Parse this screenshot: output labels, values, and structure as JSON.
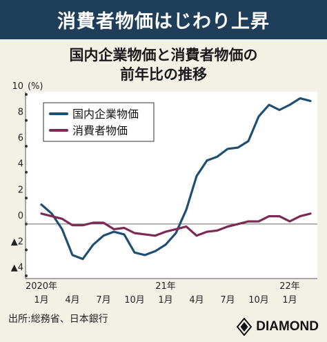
{
  "header": {
    "title": "消費者物価はじわり上昇"
  },
  "subtitle": {
    "line1": "国内企業物価と消費者物価の",
    "line2": "前年比の推移"
  },
  "source": "出所:総務省、日本銀行",
  "brand": {
    "name": "DIAMOND",
    "icon": "diamond-logo-icon"
  },
  "colors": {
    "header_bg": "#1f3e5a",
    "series_cgpi": "#1f4e73",
    "series_cpi": "#7a2a55",
    "background": "#f3f1e6"
  },
  "chart_data": {
    "type": "line",
    "title": "国内企業物価と消費者物価の前年比の推移",
    "ylabel": "(%)",
    "ylim": [
      -4,
      10
    ],
    "y_ticks": [
      {
        "value": 10,
        "label": "10"
      },
      {
        "value": 8,
        "label": "8"
      },
      {
        "value": 6,
        "label": "6"
      },
      {
        "value": 4,
        "label": "4"
      },
      {
        "value": 2,
        "label": "2"
      },
      {
        "value": 0,
        "label": "0"
      },
      {
        "value": -2,
        "label": "▲2"
      },
      {
        "value": -4,
        "label": "▲4"
      }
    ],
    "x": [
      "2020-01",
      "2020-02",
      "2020-03",
      "2020-04",
      "2020-05",
      "2020-06",
      "2020-07",
      "2020-08",
      "2020-09",
      "2020-10",
      "2020-11",
      "2020-12",
      "2021-01",
      "2021-02",
      "2021-03",
      "2021-04",
      "2021-05",
      "2021-06",
      "2021-07",
      "2021-08",
      "2021-09",
      "2021-10",
      "2021-11",
      "2021-12",
      "2022-01",
      "2022-02",
      "2022-03"
    ],
    "x_ticks": [
      {
        "index": 0,
        "month": "1月",
        "year": "2020年"
      },
      {
        "index": 3,
        "month": "4月",
        "year": ""
      },
      {
        "index": 6,
        "month": "7月",
        "year": ""
      },
      {
        "index": 9,
        "month": "10月",
        "year": ""
      },
      {
        "index": 12,
        "month": "1月",
        "year": "21年"
      },
      {
        "index": 15,
        "month": "4月",
        "year": ""
      },
      {
        "index": 18,
        "month": "7月",
        "year": ""
      },
      {
        "index": 21,
        "month": "10月",
        "year": ""
      },
      {
        "index": 24,
        "month": "1月",
        "year": "22年"
      }
    ],
    "series": [
      {
        "name": "国内企業物価",
        "color": "#1f4e73",
        "values": [
          1.5,
          0.8,
          -0.4,
          -2.4,
          -2.7,
          -1.6,
          -0.9,
          -0.6,
          -0.8,
          -2.2,
          -2.4,
          -2.1,
          -1.6,
          -0.7,
          1.1,
          3.7,
          4.9,
          5.2,
          5.8,
          5.9,
          6.4,
          8.3,
          9.2,
          8.8,
          9.2,
          9.7,
          9.5
        ]
      },
      {
        "name": "消費者物価",
        "color": "#7a2a55",
        "values": [
          0.8,
          0.6,
          0.4,
          -0.1,
          -0.1,
          0.1,
          0.1,
          -0.4,
          -0.3,
          -0.7,
          -0.8,
          -0.9,
          -0.6,
          -0.4,
          -0.2,
          -0.9,
          -0.6,
          -0.5,
          -0.2,
          0.0,
          0.2,
          0.2,
          0.6,
          0.6,
          0.2,
          0.6,
          0.8
        ]
      }
    ],
    "legend": "top-left",
    "grid": false
  }
}
